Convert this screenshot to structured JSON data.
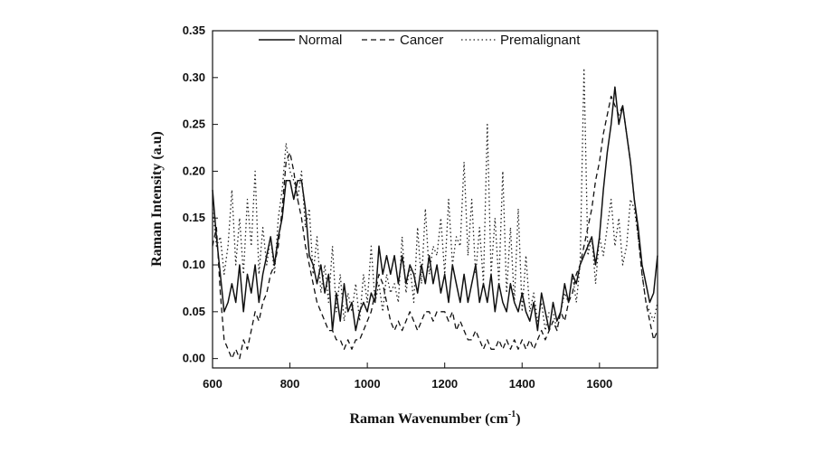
{
  "chart_data": {
    "type": "line",
    "xlabel": "Raman Wavenumber (cm",
    "xlabel_sup": "-1",
    "xlabel_close": ")",
    "ylabel": "Raman Intensity (a.u)",
    "xlim": [
      600,
      1750
    ],
    "ylim": [
      -0.01,
      0.35
    ],
    "xticks": [
      600,
      800,
      1000,
      1200,
      1400,
      1600
    ],
    "xtick_labels": [
      "600",
      "800",
      "1000",
      "1200",
      "1400",
      "1600"
    ],
    "yticks": [
      0.0,
      0.05,
      0.1,
      0.15,
      0.2,
      0.25,
      0.3,
      0.35
    ],
    "ytick_labels": [
      "0.00",
      "0.05",
      "0.10",
      "0.15",
      "0.20",
      "0.25",
      "0.30",
      "0.35"
    ],
    "grid": false,
    "legend_position": "top",
    "series": [
      {
        "name": "Normal",
        "style": "solid",
        "x": [
          600,
          610,
          620,
          630,
          640,
          650,
          660,
          670,
          680,
          690,
          700,
          710,
          720,
          730,
          740,
          750,
          760,
          770,
          780,
          790,
          800,
          810,
          820,
          830,
          840,
          850,
          860,
          870,
          880,
          890,
          900,
          910,
          920,
          930,
          940,
          950,
          960,
          970,
          980,
          990,
          1000,
          1010,
          1020,
          1030,
          1040,
          1050,
          1060,
          1070,
          1080,
          1090,
          1100,
          1110,
          1120,
          1130,
          1140,
          1150,
          1160,
          1170,
          1180,
          1190,
          1200,
          1210,
          1220,
          1230,
          1240,
          1250,
          1260,
          1270,
          1280,
          1290,
          1300,
          1310,
          1320,
          1330,
          1340,
          1350,
          1360,
          1370,
          1380,
          1390,
          1400,
          1410,
          1420,
          1430,
          1440,
          1450,
          1460,
          1470,
          1480,
          1490,
          1500,
          1510,
          1520,
          1530,
          1540,
          1550,
          1560,
          1570,
          1580,
          1590,
          1600,
          1610,
          1620,
          1630,
          1640,
          1650,
          1660,
          1670,
          1680,
          1690,
          1700,
          1710,
          1720,
          1730,
          1740,
          1750
        ],
        "y": [
          0.18,
          0.13,
          0.09,
          0.05,
          0.06,
          0.08,
          0.06,
          0.1,
          0.05,
          0.09,
          0.07,
          0.1,
          0.06,
          0.09,
          0.11,
          0.13,
          0.1,
          0.13,
          0.15,
          0.19,
          0.19,
          0.17,
          0.19,
          0.19,
          0.16,
          0.11,
          0.1,
          0.08,
          0.1,
          0.07,
          0.09,
          0.03,
          0.07,
          0.04,
          0.08,
          0.05,
          0.06,
          0.03,
          0.05,
          0.06,
          0.05,
          0.07,
          0.06,
          0.12,
          0.09,
          0.11,
          0.09,
          0.11,
          0.08,
          0.11,
          0.08,
          0.1,
          0.09,
          0.07,
          0.1,
          0.08,
          0.11,
          0.08,
          0.1,
          0.07,
          0.09,
          0.06,
          0.1,
          0.08,
          0.06,
          0.09,
          0.06,
          0.08,
          0.1,
          0.06,
          0.08,
          0.06,
          0.09,
          0.05,
          0.08,
          0.06,
          0.05,
          0.08,
          0.06,
          0.05,
          0.07,
          0.05,
          0.04,
          0.06,
          0.03,
          0.07,
          0.05,
          0.03,
          0.06,
          0.04,
          0.05,
          0.08,
          0.06,
          0.09,
          0.08,
          0.1,
          0.11,
          0.12,
          0.13,
          0.1,
          0.13,
          0.18,
          0.22,
          0.25,
          0.29,
          0.25,
          0.27,
          0.24,
          0.21,
          0.17,
          0.14,
          0.1,
          0.08,
          0.06,
          0.07,
          0.11
        ],
        "color": "#111111"
      },
      {
        "name": "Cancer",
        "style": "dashed",
        "x": [
          600,
          610,
          620,
          630,
          640,
          650,
          660,
          670,
          680,
          690,
          700,
          710,
          720,
          730,
          740,
          750,
          760,
          770,
          780,
          790,
          800,
          810,
          820,
          830,
          840,
          850,
          860,
          870,
          880,
          890,
          900,
          910,
          920,
          930,
          940,
          950,
          960,
          970,
          980,
          990,
          1000,
          1010,
          1020,
          1030,
          1040,
          1050,
          1060,
          1070,
          1080,
          1090,
          1100,
          1110,
          1120,
          1130,
          1140,
          1150,
          1160,
          1170,
          1180,
          1190,
          1200,
          1210,
          1220,
          1230,
          1240,
          1250,
          1260,
          1270,
          1280,
          1290,
          1300,
          1310,
          1320,
          1330,
          1340,
          1350,
          1360,
          1370,
          1380,
          1390,
          1400,
          1410,
          1420,
          1430,
          1440,
          1450,
          1460,
          1470,
          1480,
          1490,
          1500,
          1510,
          1520,
          1530,
          1540,
          1550,
          1560,
          1570,
          1580,
          1590,
          1600,
          1610,
          1620,
          1630,
          1640,
          1650,
          1660,
          1670,
          1680,
          1690,
          1700,
          1710,
          1720,
          1730,
          1740,
          1750
        ],
        "y": [
          0.12,
          0.14,
          0.07,
          0.02,
          0.01,
          0.0,
          0.01,
          0.0,
          0.02,
          0.01,
          0.03,
          0.05,
          0.04,
          0.06,
          0.07,
          0.09,
          0.1,
          0.12,
          0.16,
          0.21,
          0.22,
          0.2,
          0.17,
          0.15,
          0.12,
          0.1,
          0.08,
          0.06,
          0.05,
          0.04,
          0.03,
          0.03,
          0.02,
          0.02,
          0.01,
          0.02,
          0.01,
          0.02,
          0.02,
          0.03,
          0.04,
          0.05,
          0.07,
          0.09,
          0.08,
          0.06,
          0.04,
          0.03,
          0.04,
          0.03,
          0.04,
          0.05,
          0.04,
          0.03,
          0.04,
          0.05,
          0.05,
          0.04,
          0.05,
          0.05,
          0.05,
          0.04,
          0.05,
          0.03,
          0.04,
          0.03,
          0.02,
          0.02,
          0.03,
          0.02,
          0.01,
          0.02,
          0.01,
          0.01,
          0.02,
          0.01,
          0.02,
          0.01,
          0.02,
          0.01,
          0.02,
          0.01,
          0.02,
          0.01,
          0.02,
          0.03,
          0.02,
          0.03,
          0.04,
          0.03,
          0.05,
          0.04,
          0.06,
          0.07,
          0.09,
          0.1,
          0.12,
          0.14,
          0.16,
          0.19,
          0.21,
          0.24,
          0.26,
          0.28,
          0.27,
          0.26,
          0.27,
          0.24,
          0.21,
          0.17,
          0.13,
          0.09,
          0.06,
          0.04,
          0.02,
          0.03
        ],
        "color": "#111111"
      },
      {
        "name": "Premalignant",
        "style": "dotted",
        "x": [
          600,
          610,
          620,
          630,
          640,
          650,
          660,
          670,
          680,
          690,
          700,
          710,
          720,
          730,
          740,
          750,
          760,
          770,
          780,
          790,
          800,
          810,
          820,
          830,
          840,
          850,
          860,
          870,
          880,
          890,
          900,
          910,
          920,
          930,
          940,
          950,
          960,
          970,
          980,
          990,
          1000,
          1010,
          1020,
          1030,
          1040,
          1050,
          1060,
          1070,
          1080,
          1090,
          1100,
          1110,
          1120,
          1130,
          1140,
          1150,
          1160,
          1170,
          1180,
          1190,
          1200,
          1210,
          1220,
          1230,
          1240,
          1250,
          1260,
          1270,
          1280,
          1290,
          1300,
          1310,
          1320,
          1330,
          1340,
          1350,
          1360,
          1370,
          1380,
          1390,
          1400,
          1410,
          1420,
          1430,
          1440,
          1450,
          1460,
          1470,
          1480,
          1490,
          1500,
          1510,
          1520,
          1530,
          1540,
          1550,
          1560,
          1570,
          1580,
          1590,
          1600,
          1610,
          1620,
          1630,
          1640,
          1650,
          1660,
          1670,
          1680,
          1690,
          1700,
          1710,
          1720,
          1730,
          1740,
          1750
        ],
        "y": [
          0.16,
          0.12,
          0.13,
          0.09,
          0.12,
          0.18,
          0.1,
          0.15,
          0.09,
          0.17,
          0.12,
          0.2,
          0.09,
          0.14,
          0.1,
          0.13,
          0.09,
          0.15,
          0.18,
          0.23,
          0.2,
          0.19,
          0.17,
          0.2,
          0.14,
          0.16,
          0.09,
          0.13,
          0.07,
          0.1,
          0.06,
          0.12,
          0.05,
          0.09,
          0.04,
          0.07,
          0.05,
          0.08,
          0.04,
          0.09,
          0.06,
          0.12,
          0.06,
          0.08,
          0.05,
          0.09,
          0.07,
          0.08,
          0.06,
          0.13,
          0.07,
          0.1,
          0.06,
          0.14,
          0.08,
          0.16,
          0.09,
          0.12,
          0.11,
          0.15,
          0.09,
          0.17,
          0.1,
          0.13,
          0.12,
          0.21,
          0.11,
          0.17,
          0.09,
          0.14,
          0.08,
          0.25,
          0.09,
          0.15,
          0.08,
          0.2,
          0.07,
          0.14,
          0.06,
          0.16,
          0.05,
          0.11,
          0.05,
          0.07,
          0.04,
          0.06,
          0.03,
          0.05,
          0.05,
          0.03,
          0.05,
          0.07,
          0.06,
          0.09,
          0.06,
          0.1,
          0.31,
          0.11,
          0.13,
          0.08,
          0.13,
          0.11,
          0.14,
          0.17,
          0.12,
          0.15,
          0.1,
          0.12,
          0.17,
          0.16,
          0.13,
          0.09,
          0.06,
          0.05,
          0.04,
          0.06
        ],
        "color": "#222222"
      }
    ]
  }
}
